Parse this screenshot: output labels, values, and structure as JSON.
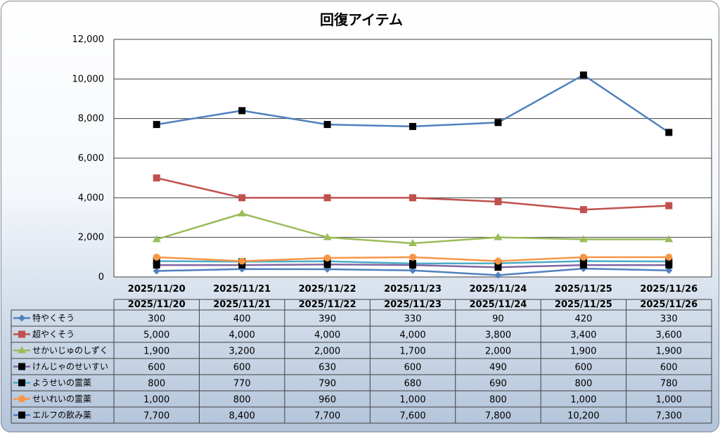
{
  "chart_data": {
    "type": "line",
    "title": "回復アイテム",
    "categories": [
      "2025/11/20",
      "2025/11/21",
      "2025/11/22",
      "2025/11/23",
      "2025/11/24",
      "2025/11/25",
      "2025/11/26"
    ],
    "ylim": [
      0,
      12000
    ],
    "yticks": [
      0,
      2000,
      4000,
      6000,
      8000,
      10000,
      12000
    ],
    "ytick_labels": [
      "0",
      "2,000",
      "4,000",
      "6,000",
      "8,000",
      "10,000",
      "12,000"
    ],
    "grid": true,
    "legend": "data-table",
    "series": [
      {
        "name": "特やくそう",
        "color": "#4f81bd",
        "marker": "diamond",
        "marker_color": "#4f81bd",
        "values": [
          300,
          400,
          390,
          330,
          90,
          420,
          330
        ],
        "labels": [
          "300",
          "400",
          "390",
          "330",
          "90",
          "420",
          "330"
        ]
      },
      {
        "name": "超やくそう",
        "color": "#c0504d",
        "marker": "square",
        "marker_color": "#c0504d",
        "values": [
          5000,
          4000,
          4000,
          4000,
          3800,
          3400,
          3600
        ],
        "labels": [
          "5,000",
          "4,000",
          "4,000",
          "4,000",
          "3,800",
          "3,400",
          "3,600"
        ]
      },
      {
        "name": "せかいじゅのしずく",
        "color": "#9bbb59",
        "marker": "triangle",
        "marker_color": "#9bbb59",
        "values": [
          1900,
          3200,
          2000,
          1700,
          2000,
          1900,
          1900
        ],
        "labels": [
          "1,900",
          "3,200",
          "2,000",
          "1,700",
          "2,000",
          "1,900",
          "1,900"
        ]
      },
      {
        "name": "けんじゃのせいすい",
        "color": "#8064a2",
        "marker": "square",
        "marker_color": "#000000",
        "values": [
          600,
          600,
          630,
          600,
          490,
          600,
          600
        ],
        "labels": [
          "600",
          "600",
          "630",
          "600",
          "490",
          "600",
          "600"
        ]
      },
      {
        "name": "ようせいの霊薬",
        "color": "#4bacc6",
        "marker": "square",
        "marker_color": "#000000",
        "values": [
          800,
          770,
          790,
          680,
          690,
          800,
          780
        ],
        "labels": [
          "800",
          "770",
          "790",
          "680",
          "690",
          "800",
          "780"
        ]
      },
      {
        "name": "せいれいの霊薬",
        "color": "#f79646",
        "marker": "circle",
        "marker_color": "#f79646",
        "values": [
          1000,
          800,
          960,
          1000,
          800,
          1000,
          1000
        ],
        "labels": [
          "1,000",
          "800",
          "960",
          "1,000",
          "800",
          "1,000",
          "1,000"
        ]
      },
      {
        "name": "エルフの飲み薬",
        "color": "#4f81bd",
        "marker": "square",
        "marker_color": "#000000",
        "values": [
          7700,
          8400,
          7700,
          7600,
          7800,
          10200,
          7300
        ],
        "labels": [
          "7,700",
          "8,400",
          "7,700",
          "7,600",
          "7,800",
          "10,200",
          "7,300"
        ]
      }
    ]
  }
}
